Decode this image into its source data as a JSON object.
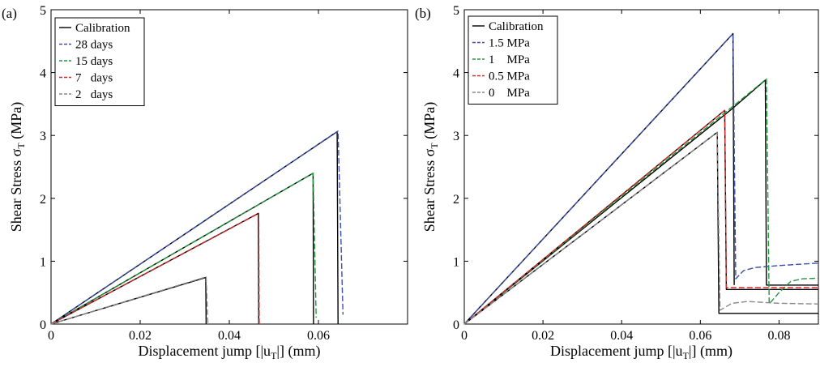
{
  "chart_data": [
    {
      "type": "line",
      "panel_label": "(a)",
      "xlabel": "Displacement jump [|u",
      "xlabel_sub": "T",
      "xlabel_tail": "|] (mm)",
      "ylabel": "Shear Stress σ",
      "ylabel_sub": "T",
      "ylabel_tail": " (MPa)",
      "xlim": [
        0,
        0.08
      ],
      "ylim": [
        0,
        5
      ],
      "xticks": [
        0,
        0.02,
        0.04,
        0.06
      ],
      "xtick_labels": [
        "0",
        "0.02",
        "0.04",
        "0.06"
      ],
      "yticks": [
        0,
        1,
        2,
        3,
        4,
        5
      ],
      "ytick_labels": [
        "0",
        "1",
        "2",
        "3",
        "4",
        "5"
      ],
      "grid": false,
      "legend_position": "top-left",
      "series": [
        {
          "name": "Calibration",
          "color": "#000000",
          "dash": "solid",
          "legend": true,
          "points": [
            [
              0,
              0
            ],
            [
              0.0347,
              0.74
            ],
            [
              0.0348,
              0
            ]
          ]
        },
        {
          "name": "Calibration",
          "color": "#000000",
          "dash": "solid",
          "legend": false,
          "points": [
            [
              0,
              0
            ],
            [
              0.0465,
              1.76
            ],
            [
              0.0466,
              0
            ]
          ]
        },
        {
          "name": "Calibration",
          "color": "#000000",
          "dash": "solid",
          "legend": false,
          "points": [
            [
              0,
              0
            ],
            [
              0.0588,
              2.4
            ],
            [
              0.0589,
              0
            ]
          ]
        },
        {
          "name": "Calibration",
          "color": "#000000",
          "dash": "solid",
          "legend": false,
          "points": [
            [
              0,
              0
            ],
            [
              0.0642,
              3.06
            ],
            [
              0.0644,
              0
            ]
          ]
        },
        {
          "name": "28 days",
          "color": "#3b4fb0",
          "dash": "dashed",
          "legend": true,
          "points": [
            [
              0,
              0
            ],
            [
              0.0644,
              3.07
            ],
            [
              0.0655,
              0.15
            ]
          ]
        },
        {
          "name": "15 days",
          "color": "#1e9a3a",
          "dash": "dashed",
          "legend": true,
          "points": [
            [
              0,
              0
            ],
            [
              0.0588,
              2.4
            ],
            [
              0.0595,
              0.1
            ]
          ]
        },
        {
          "name": "7   days",
          "color": "#d62a2a",
          "dash": "dashed",
          "legend": true,
          "points": [
            [
              0,
              0
            ],
            [
              0.0466,
              1.76
            ],
            [
              0.0467,
              0
            ]
          ]
        },
        {
          "name": "2   days",
          "color": "#888888",
          "dash": "dashed",
          "legend": true,
          "points": [
            [
              0,
              0
            ],
            [
              0.0348,
              0.75
            ],
            [
              0.0352,
              0
            ]
          ]
        }
      ]
    },
    {
      "type": "line",
      "panel_label": "(b)",
      "xlabel": "Displacement jump [|u",
      "xlabel_sub": "T",
      "xlabel_tail": "|] (mm)",
      "ylabel": "Shear Stress σ",
      "ylabel_sub": "T",
      "ylabel_tail": " (MPa)",
      "xlim": [
        0,
        0.09
      ],
      "ylim": [
        0,
        5
      ],
      "xticks": [
        0,
        0.02,
        0.04,
        0.06,
        0.08
      ],
      "xtick_labels": [
        "0",
        "0.02",
        "0.04",
        "0.06",
        "0.08"
      ],
      "yticks": [
        0,
        1,
        2,
        3,
        4,
        5
      ],
      "ytick_labels": [
        "0",
        "1",
        "2",
        "3",
        "4",
        "5"
      ],
      "grid": false,
      "legend_position": "top-left",
      "series": [
        {
          "name": "Calibration",
          "color": "#000000",
          "dash": "solid",
          "legend": true,
          "points": [
            [
              0,
              0
            ],
            [
              0.0643,
              3.05
            ],
            [
              0.0647,
              0.17
            ],
            [
              0.09,
              0.17
            ]
          ]
        },
        {
          "name": "Calibration",
          "color": "#000000",
          "dash": "solid",
          "legend": false,
          "points": [
            [
              0,
              0
            ],
            [
              0.0662,
              3.4
            ],
            [
              0.0666,
              0.55
            ],
            [
              0.09,
              0.55
            ]
          ]
        },
        {
          "name": "Calibration",
          "color": "#000000",
          "dash": "solid",
          "legend": false,
          "points": [
            [
              0,
              0
            ],
            [
              0.068,
              3.42
            ],
            [
              0.0765,
              3.88
            ],
            [
              0.0768,
              0.62
            ],
            [
              0.09,
              0.62
            ]
          ]
        },
        {
          "name": "Calibration",
          "color": "#000000",
          "dash": "solid",
          "legend": false,
          "points": [
            [
              0,
              0
            ],
            [
              0.0683,
              4.62
            ],
            [
              0.0686,
              0.62
            ]
          ]
        },
        {
          "name": "1.5 MPa",
          "color": "#3b4fb0",
          "dash": "dashed",
          "legend": true,
          "points": [
            [
              0,
              0
            ],
            [
              0.0683,
              4.62
            ],
            [
              0.069,
              0.72
            ],
            [
              0.071,
              0.85
            ],
            [
              0.074,
              0.9
            ],
            [
              0.08,
              0.93
            ],
            [
              0.09,
              0.97
            ]
          ]
        },
        {
          "name": "1    MPa",
          "color": "#1e9a3a",
          "dash": "dashed",
          "legend": true,
          "points": [
            [
              0,
              0
            ],
            [
              0.066,
              3.35
            ],
            [
              0.07,
              3.55
            ],
            [
              0.0768,
              3.9
            ],
            [
              0.0775,
              0.32
            ],
            [
              0.08,
              0.5
            ],
            [
              0.083,
              0.68
            ],
            [
              0.086,
              0.72
            ],
            [
              0.09,
              0.73
            ]
          ]
        },
        {
          "name": "0.5 MPa",
          "color": "#d62a2a",
          "dash": "dashed",
          "legend": true,
          "points": [
            [
              0,
              0
            ],
            [
              0.0662,
              3.4
            ],
            [
              0.0666,
              0.58
            ],
            [
              0.09,
              0.58
            ]
          ]
        },
        {
          "name": "0    MPa",
          "color": "#888888",
          "dash": "dashed",
          "legend": true,
          "points": [
            [
              0,
              0
            ],
            [
              0.0643,
              3.05
            ],
            [
              0.065,
              0.22
            ],
            [
              0.068,
              0.33
            ],
            [
              0.072,
              0.36
            ],
            [
              0.08,
              0.33
            ],
            [
              0.09,
              0.32
            ]
          ]
        }
      ]
    }
  ]
}
